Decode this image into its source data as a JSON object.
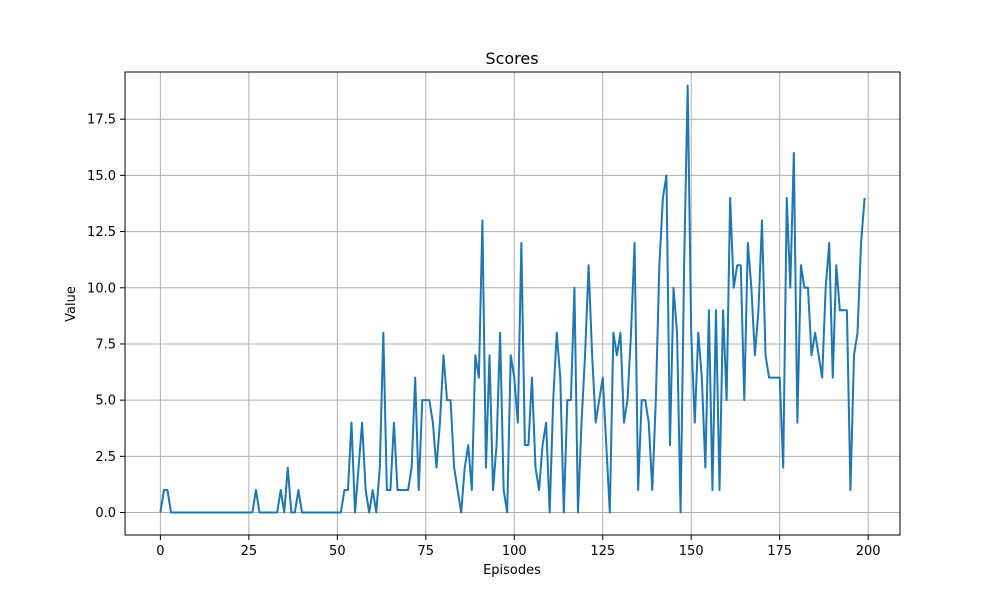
{
  "chart_data": {
    "type": "line",
    "title": "Scores",
    "xlabel": "Episodes",
    "ylabel": "Value",
    "xlim": [
      -10,
      209
    ],
    "ylim": [
      -1,
      19.6
    ],
    "xticks": [
      0,
      25,
      50,
      75,
      100,
      125,
      150,
      175,
      200
    ],
    "xtick_labels": [
      "0",
      "25",
      "50",
      "75",
      "100",
      "125",
      "150",
      "175",
      "200"
    ],
    "yticks": [
      0,
      2.5,
      5,
      7.5,
      10,
      12.5,
      15,
      17.5
    ],
    "ytick_labels": [
      "0.0",
      "2.5",
      "5.0",
      "7.5",
      "10.0",
      "12.5",
      "15.0",
      "17.5"
    ],
    "grid": true,
    "colors": {
      "line": "#1f77b4",
      "grid": "#b0b0b0",
      "axis": "#000000"
    },
    "series": [
      {
        "x_start": 0,
        "values": [
          0,
          1,
          1,
          0,
          0,
          0,
          0,
          0,
          0,
          0,
          0,
          0,
          0,
          0,
          0,
          0,
          0,
          0,
          0,
          0,
          0,
          0,
          0,
          0,
          0,
          0,
          0,
          1,
          0,
          0,
          0,
          0,
          0,
          0,
          1,
          0,
          2,
          0,
          0,
          1,
          0,
          0,
          0,
          0,
          0,
          0,
          0,
          0,
          0,
          0,
          0,
          0,
          1,
          1,
          4,
          0,
          2,
          4,
          1,
          0,
          1,
          0,
          2,
          8,
          1,
          1,
          4,
          1,
          1,
          1,
          1,
          2,
          6,
          1,
          5,
          5,
          5,
          4,
          2,
          4,
          7,
          5,
          5,
          2,
          1,
          0,
          2,
          3,
          1,
          7,
          6,
          13,
          2,
          7,
          1,
          3,
          8,
          1,
          0,
          7,
          6,
          4,
          12,
          3,
          3,
          6,
          2,
          1,
          3,
          4,
          0,
          5,
          8,
          6,
          0,
          5,
          5,
          10,
          0,
          4,
          7,
          11,
          7,
          4,
          5,
          6,
          3,
          0,
          8,
          7,
          8,
          4,
          5,
          8,
          12,
          1,
          5,
          5,
          4,
          1,
          5,
          11,
          14,
          15,
          3,
          10,
          8,
          0,
          11,
          19,
          8,
          4,
          8,
          6,
          2,
          9,
          1,
          9,
          1,
          9,
          5,
          14,
          10,
          11,
          11,
          5,
          12,
          10,
          7,
          9,
          13,
          7,
          6,
          6,
          6,
          6,
          2,
          14,
          10,
          16,
          4,
          11,
          10,
          10,
          7,
          8,
          7,
          6,
          10,
          12,
          6,
          11,
          9,
          9,
          9,
          1,
          7,
          8,
          12,
          14
        ]
      }
    ]
  }
}
